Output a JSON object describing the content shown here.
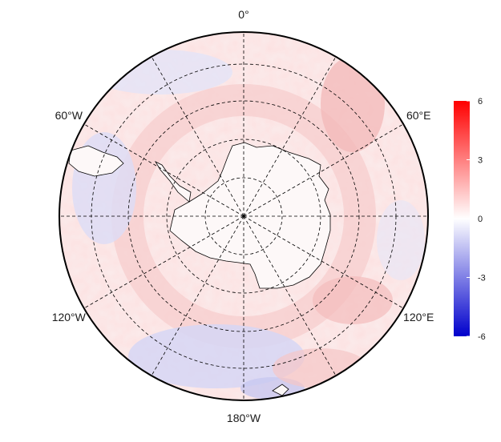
{
  "map": {
    "projection": "south-polar-stereographic",
    "longitude_labels": [
      {
        "lon": 0,
        "text": "0°"
      },
      {
        "lon": 60,
        "text": "60°E"
      },
      {
        "lon": 120,
        "text": "120°E"
      },
      {
        "lon": 180,
        "text": "180°W"
      },
      {
        "lon": -120,
        "text": "120°W"
      },
      {
        "lon": -60,
        "text": "60°W"
      }
    ],
    "meridians": [
      0,
      30,
      60,
      90,
      120,
      150,
      180,
      210,
      240,
      270,
      300,
      330
    ],
    "latitude_circles": [
      -80,
      -70,
      -60,
      -50
    ],
    "coastline_color": "#000000",
    "grid_line_style": "dashed"
  },
  "colorbar": {
    "min": -6,
    "max": 6,
    "ticks": [
      {
        "value": 6,
        "text": "6"
      },
      {
        "value": 3,
        "text": "3"
      },
      {
        "value": 0,
        "text": "0"
      },
      {
        "value": -3,
        "text": "-3"
      },
      {
        "value": -6,
        "text": "-6"
      }
    ],
    "color_low": "#0000cc",
    "color_mid": "#ffffff",
    "color_high": "#ff0000"
  }
}
